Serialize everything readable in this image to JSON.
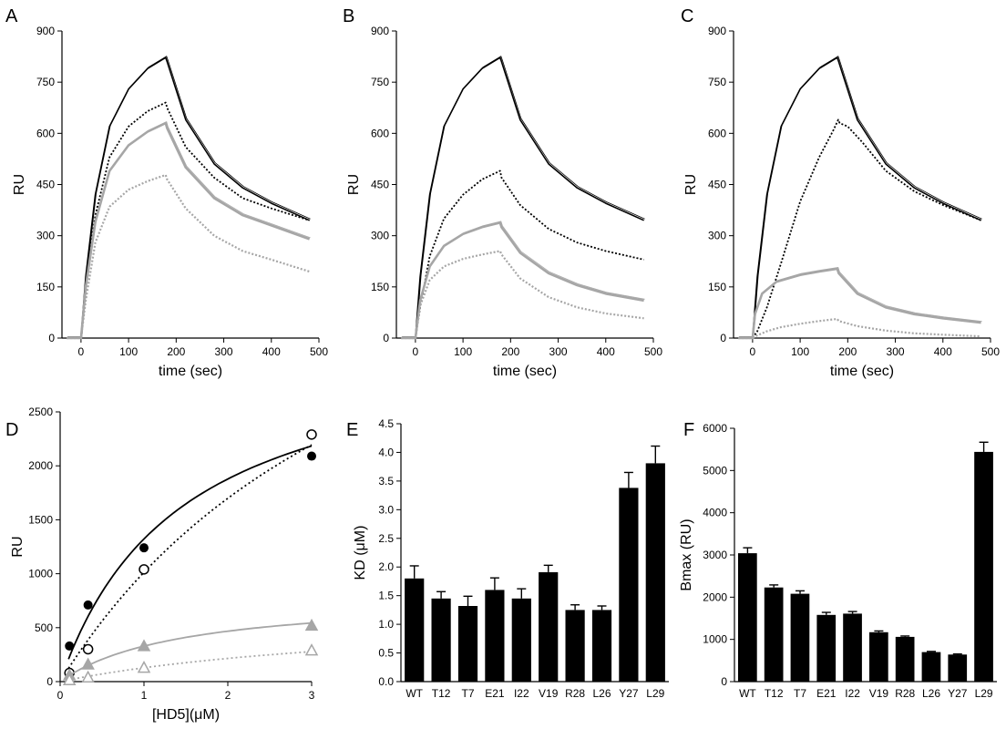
{
  "colors": {
    "black": "#000000",
    "gray": "#a6a6a6"
  },
  "chart_data": [
    {
      "panel": "A",
      "type": "line",
      "xlabel": "time (sec)",
      "ylabel": "RU",
      "xlim": [
        -40,
        500
      ],
      "ylim": [
        0,
        900
      ],
      "xticks": [
        0,
        100,
        200,
        300,
        400,
        500
      ],
      "yticks": [
        0,
        150,
        300,
        450,
        600,
        750,
        900
      ],
      "series": [
        {
          "color": "black",
          "style": "solid",
          "x": [
            -30,
            0,
            10,
            30,
            60,
            100,
            140,
            178,
            181,
            220,
            280,
            340,
            400,
            480
          ],
          "y": [
            0,
            0,
            180,
            420,
            620,
            730,
            790,
            822,
            810,
            640,
            510,
            440,
            395,
            345
          ]
        },
        {
          "color": "black",
          "style": "dotted",
          "x": [
            -30,
            0,
            10,
            30,
            60,
            100,
            140,
            178,
            181,
            220,
            280,
            340,
            400,
            480
          ],
          "y": [
            0,
            0,
            160,
            360,
            530,
            620,
            665,
            690,
            675,
            560,
            470,
            410,
            380,
            345
          ]
        },
        {
          "color": "gray",
          "style": "solid",
          "x": [
            -30,
            0,
            10,
            30,
            60,
            100,
            140,
            178,
            181,
            220,
            280,
            340,
            400,
            480
          ],
          "y": [
            0,
            0,
            150,
            340,
            490,
            565,
            605,
            630,
            615,
            500,
            410,
            360,
            330,
            290
          ]
        },
        {
          "color": "gray",
          "style": "dotted",
          "x": [
            -30,
            0,
            10,
            30,
            60,
            100,
            140,
            178,
            181,
            220,
            280,
            340,
            400,
            480
          ],
          "y": [
            0,
            0,
            110,
            280,
            385,
            435,
            460,
            478,
            465,
            380,
            300,
            255,
            230,
            195
          ]
        }
      ]
    },
    {
      "panel": "B",
      "type": "line",
      "xlabel": "time (sec)",
      "ylabel": "RU",
      "xlim": [
        -40,
        500
      ],
      "ylim": [
        0,
        900
      ],
      "xticks": [
        0,
        100,
        200,
        300,
        400,
        500
      ],
      "yticks": [
        0,
        150,
        300,
        450,
        600,
        750,
        900
      ],
      "series": [
        {
          "color": "black",
          "style": "solid",
          "x": [
            -30,
            0,
            10,
            30,
            60,
            100,
            140,
            178,
            181,
            220,
            280,
            340,
            400,
            480
          ],
          "y": [
            0,
            0,
            180,
            420,
            620,
            730,
            790,
            822,
            810,
            640,
            510,
            440,
            395,
            345
          ]
        },
        {
          "color": "black",
          "style": "dotted",
          "x": [
            -30,
            0,
            10,
            30,
            60,
            100,
            140,
            178,
            181,
            220,
            280,
            340,
            400,
            480
          ],
          "y": [
            0,
            0,
            90,
            240,
            350,
            420,
            465,
            490,
            470,
            390,
            320,
            280,
            255,
            230
          ]
        },
        {
          "color": "gray",
          "style": "solid",
          "x": [
            -30,
            0,
            10,
            30,
            60,
            100,
            140,
            178,
            181,
            220,
            280,
            340,
            400,
            480
          ],
          "y": [
            0,
            0,
            110,
            210,
            270,
            305,
            325,
            338,
            325,
            250,
            190,
            155,
            130,
            110
          ]
        },
        {
          "color": "gray",
          "style": "dotted",
          "x": [
            -30,
            0,
            10,
            30,
            60,
            100,
            140,
            178,
            181,
            220,
            280,
            340,
            400,
            480
          ],
          "y": [
            0,
            0,
            95,
            170,
            210,
            232,
            245,
            255,
            245,
            175,
            120,
            90,
            72,
            58
          ]
        }
      ]
    },
    {
      "panel": "C",
      "type": "line",
      "xlabel": "time (sec)",
      "ylabel": "RU",
      "xlim": [
        -40,
        500
      ],
      "ylim": [
        0,
        900
      ],
      "xticks": [
        0,
        100,
        200,
        300,
        400,
        500
      ],
      "yticks": [
        0,
        150,
        300,
        450,
        600,
        750,
        900
      ],
      "series": [
        {
          "color": "black",
          "style": "solid",
          "x": [
            -30,
            0,
            10,
            30,
            60,
            100,
            140,
            178,
            181,
            220,
            280,
            340,
            400,
            480
          ],
          "y": [
            0,
            0,
            180,
            420,
            620,
            730,
            790,
            822,
            810,
            640,
            510,
            440,
            395,
            345
          ]
        },
        {
          "color": "black",
          "style": "dotted",
          "x": [
            -30,
            0,
            10,
            30,
            60,
            100,
            140,
            170,
            180,
            183,
            200,
            230,
            280,
            340,
            400,
            480
          ],
          "y": [
            0,
            0,
            20,
            90,
            220,
            400,
            530,
            610,
            640,
            630,
            620,
            575,
            490,
            430,
            390,
            345
          ]
        },
        {
          "color": "gray",
          "style": "solid",
          "x": [
            -30,
            0,
            5,
            20,
            50,
            100,
            140,
            178,
            181,
            220,
            280,
            340,
            400,
            480
          ],
          "y": [
            0,
            0,
            70,
            130,
            165,
            185,
            195,
            203,
            190,
            130,
            90,
            70,
            58,
            45
          ]
        },
        {
          "color": "gray",
          "style": "dotted",
          "x": [
            -30,
            0,
            10,
            30,
            60,
            100,
            140,
            178,
            181,
            220,
            280,
            340,
            400,
            480
          ],
          "y": [
            0,
            0,
            8,
            20,
            32,
            42,
            50,
            56,
            50,
            35,
            22,
            14,
            10,
            5
          ]
        }
      ]
    },
    {
      "panel": "D",
      "type": "scatter",
      "xlabel": "[HD5](μM)",
      "ylabel": "RU",
      "xlim": [
        0,
        3
      ],
      "ylim": [
        0,
        2500
      ],
      "xticks": [
        0,
        1,
        2,
        3
      ],
      "yticks": [
        0,
        500,
        1000,
        1500,
        2000,
        2500
      ],
      "series": [
        {
          "marker": "filled-circle",
          "color": "black",
          "line": "solid",
          "x": [
            0.111,
            0.333,
            1,
            3
          ],
          "y": [
            330,
            710,
            1240,
            2090
          ]
        },
        {
          "marker": "open-circle",
          "color": "black",
          "line": "dotted",
          "x": [
            0.111,
            0.333,
            1,
            3
          ],
          "y": [
            80,
            300,
            1040,
            2290
          ]
        },
        {
          "marker": "filled-triangle",
          "color": "gray",
          "line": "solid",
          "x": [
            0.111,
            0.333,
            1,
            3
          ],
          "y": [
            60,
            160,
            330,
            520
          ]
        },
        {
          "marker": "open-triangle",
          "color": "gray",
          "line": "dotted",
          "x": [
            0.111,
            0.333,
            1,
            3
          ],
          "y": [
            15,
            40,
            130,
            290
          ]
        }
      ]
    },
    {
      "panel": "E",
      "type": "bar",
      "ylabel": "KD (μM)",
      "ylim": [
        0,
        4.5
      ],
      "yticks": [
        "0.0",
        "0.5",
        "1.0",
        "1.5",
        "2.0",
        "2.5",
        "3.0",
        "3.5",
        "4.0",
        "4.5"
      ],
      "categories": [
        "WT",
        "T12",
        "T7",
        "E21",
        "I22",
        "V19",
        "R28",
        "L26",
        "Y27",
        "L29"
      ],
      "values": [
        1.8,
        1.45,
        1.32,
        1.6,
        1.45,
        1.91,
        1.25,
        1.25,
        3.38,
        3.81
      ],
      "errors": [
        0.22,
        0.12,
        0.17,
        0.21,
        0.17,
        0.12,
        0.09,
        0.07,
        0.27,
        0.3
      ]
    },
    {
      "panel": "F",
      "type": "bar",
      "ylabel": "Bmax (RU)",
      "ylim": [
        0,
        6000
      ],
      "yticks": [
        "0",
        "1000",
        "2000",
        "3000",
        "4000",
        "5000",
        "6000"
      ],
      "categories": [
        "WT",
        "T12",
        "T7",
        "E21",
        "I22",
        "V19",
        "R28",
        "L26",
        "Y27",
        "L29"
      ],
      "values": [
        3040,
        2230,
        2080,
        1580,
        1610,
        1170,
        1060,
        700,
        640,
        5440
      ],
      "errors": [
        130,
        60,
        70,
        60,
        50,
        30,
        20,
        15,
        15,
        230
      ]
    }
  ]
}
